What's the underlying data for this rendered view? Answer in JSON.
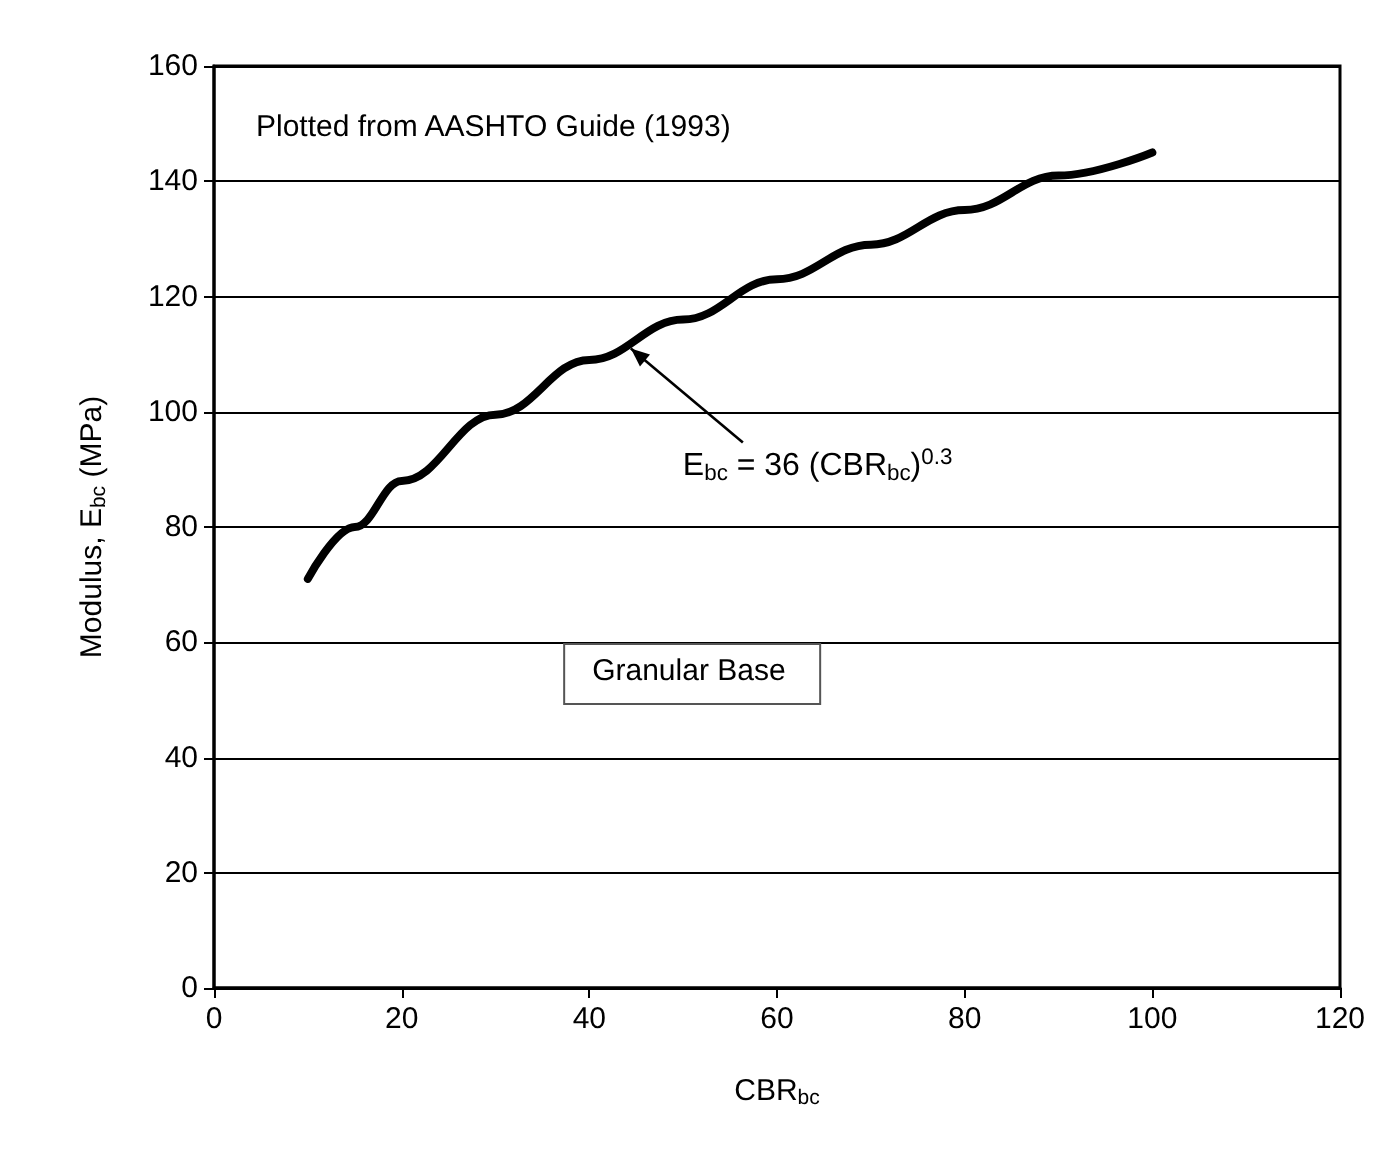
{
  "chart_data": {
    "type": "line",
    "xlabel": "CBR$_{bc}$",
    "ylabel": "Modulus, E$_{bc}$ (MPa)",
    "x": [
      10,
      15,
      20,
      30,
      40,
      50,
      60,
      70,
      80,
      90,
      100
    ],
    "series": [
      {
        "color": "#000000",
        "values": [
          71,
          80,
          88,
          99.5,
          109,
          116,
          123,
          129,
          135,
          141,
          145
        ]
      }
    ],
    "xlim": [
      0,
      120
    ],
    "xticks": [
      0,
      20,
      40,
      60,
      80,
      100,
      120
    ],
    "ylim": [
      0,
      160
    ],
    "yticks": [
      0,
      20,
      40,
      60,
      80,
      100,
      120,
      140,
      160
    ],
    "grid": "y",
    "marker": "none",
    "line_style": "solid",
    "annotations": [
      "Plotted from AASHTO Guide (1993)",
      {
        "text": "E$_{bc}$ = 36 (CBR$_{bc}$)$^{0.3}$",
        "x": 44,
        "y": 112
      },
      "Granular Base"
    ]
  }
}
